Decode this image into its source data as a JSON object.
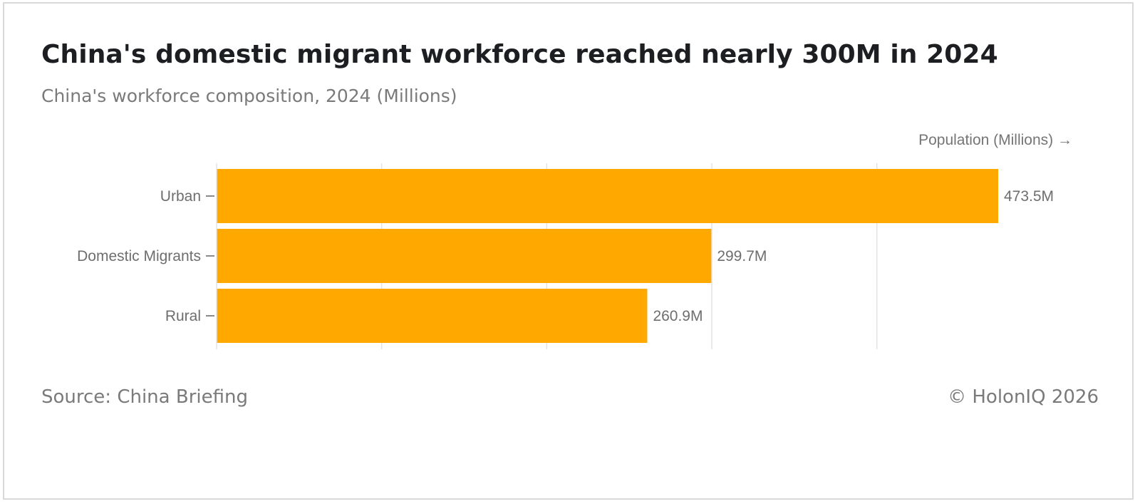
{
  "header": {
    "title": "China's domestic migrant workforce reached nearly 300M in 2024",
    "subtitle": "China's workforce composition, 2024 (Millions)"
  },
  "footer": {
    "source": "Source: China Briefing",
    "credit": "© HolonIQ 2026"
  },
  "colors": {
    "bar": "#FFA800",
    "grid": "#e3e3e3",
    "axis": "#8a8a8a"
  },
  "chart_data": {
    "type": "bar",
    "orientation": "horizontal",
    "title": "China's domestic migrant workforce reached nearly 300M in 2024",
    "subtitle": "China's workforce composition, 2024 (Millions)",
    "xlabel": "Population (Millions) →",
    "ylabel": "",
    "categories": [
      "Urban",
      "Domestic Migrants",
      "Rural"
    ],
    "values": [
      473.5,
      299.7,
      260.9
    ],
    "value_labels": [
      "473.5M",
      "299.7M",
      "260.9M"
    ],
    "xlim": [
      0,
      500
    ],
    "grid": true,
    "legend": "none"
  }
}
